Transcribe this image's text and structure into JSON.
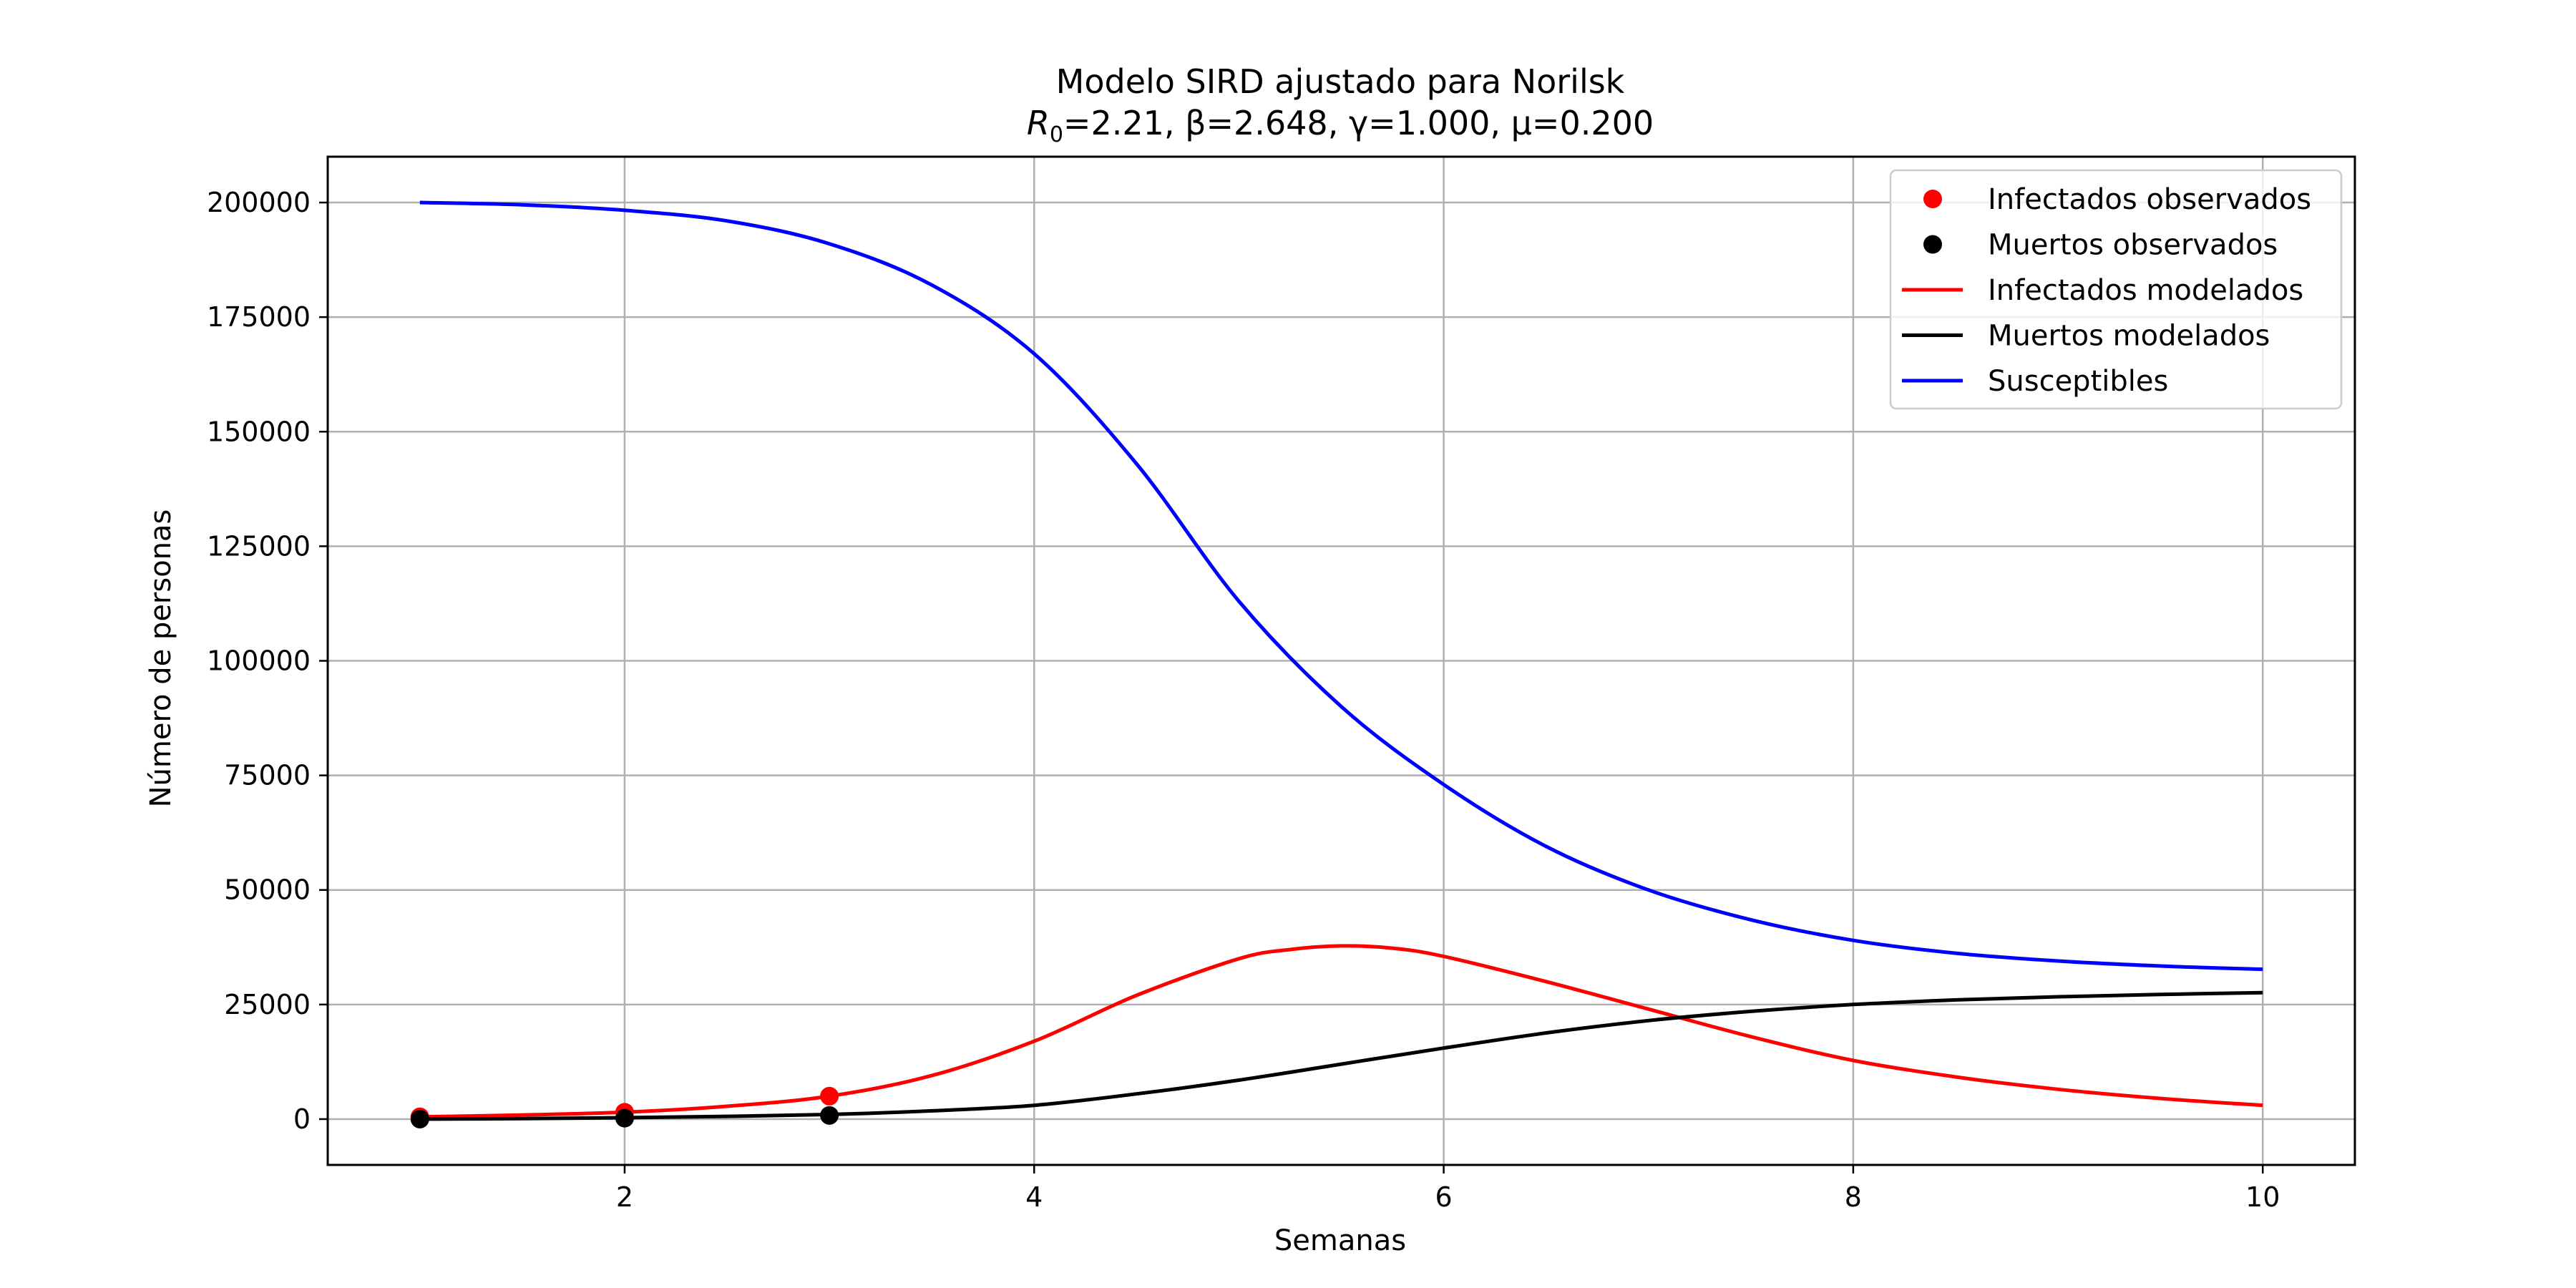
{
  "chart_data": {
    "type": "line",
    "title": "Modelo SIRD ajustado para Norilsk",
    "subtitle": {
      "r0_symbol": "R",
      "r0_subscript": "0",
      "r0_rest": "=2.21, β=2.648, γ=1.000, μ=0.200"
    },
    "xlabel": "Semanas",
    "ylabel": "Número de personas",
    "xlim": [
      0.55,
      10.45
    ],
    "ylim": [
      -10000,
      210000
    ],
    "xticks": [
      2,
      4,
      6,
      8,
      10
    ],
    "xtick_labels": [
      "2",
      "4",
      "6",
      "8",
      "10"
    ],
    "yticks": [
      0,
      25000,
      50000,
      75000,
      100000,
      125000,
      150000,
      175000,
      200000
    ],
    "ytick_labels": [
      "0",
      "25000",
      "50000",
      "75000",
      "100000",
      "125000",
      "150000",
      "175000",
      "200000"
    ],
    "grid": true,
    "legend_position": "top-right",
    "colors": {
      "infected": "#ff0000",
      "deaths": "#000000",
      "susceptible": "#0000ff",
      "grid": "#b0b0b0"
    },
    "scatter_series": [
      {
        "name": "Infectados observados",
        "color": "#ff0000",
        "points": [
          [
            1,
            500
          ],
          [
            2,
            1500
          ],
          [
            3,
            5000
          ]
        ]
      },
      {
        "name": "Muertos observados",
        "color": "#000000",
        "points": [
          [
            1,
            0
          ],
          [
            2,
            200
          ],
          [
            3,
            800
          ]
        ]
      }
    ],
    "line_series": [
      {
        "name": "Infectados modelados",
        "color": "#ff0000",
        "x": [
          1,
          1.5,
          2,
          2.5,
          3,
          3.5,
          4,
          4.5,
          5,
          5.25,
          5.5,
          5.75,
          6,
          6.5,
          7,
          7.5,
          8,
          8.5,
          9,
          9.5,
          10
        ],
        "y": [
          500,
          900,
          1500,
          2800,
          5000,
          9500,
          17000,
          27000,
          35000,
          37000,
          37800,
          37300,
          35500,
          30000,
          24000,
          18000,
          12800,
          9200,
          6500,
          4500,
          3000
        ]
      },
      {
        "name": "Muertos modelados",
        "color": "#000000",
        "x": [
          1,
          1.5,
          2,
          2.5,
          3,
          3.5,
          4,
          4.5,
          5,
          5.5,
          6,
          6.5,
          7,
          7.5,
          8,
          8.5,
          9,
          9.5,
          10
        ],
        "y": [
          0,
          100,
          300,
          600,
          1000,
          1800,
          3000,
          5500,
          8500,
          12000,
          15500,
          18800,
          21500,
          23500,
          25000,
          26000,
          26700,
          27200,
          27600
        ]
      },
      {
        "name": "Susceptibles",
        "color": "#0000ff",
        "x": [
          1,
          1.5,
          2,
          2.5,
          3,
          3.5,
          4,
          4.5,
          5,
          5.5,
          6,
          6.5,
          7,
          7.5,
          8,
          8.5,
          9,
          9.5,
          10
        ],
        "y": [
          200000,
          199500,
          198300,
          196000,
          191000,
          182000,
          167000,
          143000,
          113000,
          90000,
          73000,
          59500,
          50000,
          43500,
          39000,
          36200,
          34500,
          33400,
          32700
        ]
      }
    ],
    "legend_entries": [
      {
        "label": "Infectados observados",
        "kind": "marker",
        "color": "#ff0000"
      },
      {
        "label": "Muertos observados",
        "kind": "marker",
        "color": "#000000"
      },
      {
        "label": "Infectados modelados",
        "kind": "line",
        "color": "#ff0000"
      },
      {
        "label": "Muertos modelados",
        "kind": "line",
        "color": "#000000"
      },
      {
        "label": "Susceptibles",
        "kind": "line",
        "color": "#0000ff"
      }
    ]
  }
}
